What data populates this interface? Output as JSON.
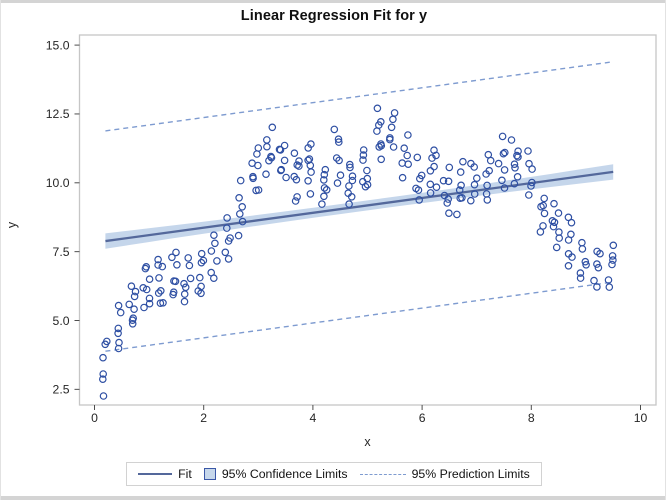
{
  "figure": {
    "title": "Linear Regression Fit for y"
  },
  "axes": {
    "x_label": "x",
    "y_label": "y",
    "x_tick_labels": [
      "0",
      "2",
      "4",
      "6",
      "8",
      "10"
    ],
    "y_tick_labels": [
      "2.5",
      "5.0",
      "7.5",
      "10.0",
      "12.5",
      "15.0"
    ]
  },
  "legend": {
    "fit_label": "Fit",
    "ci_label": "95% Confidence Limits",
    "pl_label": "95% Prediction Limits"
  },
  "colors": {
    "marker_stroke": "#2e4fa3",
    "fit_line": "#54689b",
    "confidence_band_fill": "#bfd2e9",
    "prediction_line": "#7e9bd0",
    "plot_border": "#c6c6c6",
    "tick": "#4d4d4d",
    "tick_label": "#262626"
  },
  "chart_data": {
    "type": "scatter",
    "title": "Linear Regression Fit for y",
    "xlabel": "x",
    "ylabel": "y",
    "xlim": [
      -0.28,
      10.28
    ],
    "ylim": [
      1.93,
      15.36
    ],
    "x_tick_values": [
      0,
      2,
      4,
      6,
      8,
      10
    ],
    "y_tick_values": [
      2.5,
      5.0,
      7.5,
      10.0,
      12.5,
      15.0
    ],
    "grid": "off",
    "legend_position": "bottom-outside",
    "fit_line": {
      "name": "Fit",
      "intercept": 7.83,
      "slope": 0.27,
      "x_start": 0.2,
      "x_end": 9.5
    },
    "confidence_band": {
      "name": "95% Confidence Limits",
      "center_mid_x": 4.85,
      "half_width_mid": 0.18,
      "half_width_end": 0.28
    },
    "prediction_limits": {
      "name": "95% Prediction Limits",
      "offset": 4.0,
      "x_start": 0.2,
      "x_end": 9.5,
      "upper_endpoints_y": [
        11.91,
        14.4
      ],
      "lower_endpoints_y": [
        3.91,
        6.4
      ]
    },
    "scatter": {
      "marker": "open-circle",
      "column_x": [
        0.2,
        0.45,
        0.7,
        0.95,
        1.2,
        1.45,
        1.7,
        1.95,
        2.2,
        2.45,
        2.7,
        2.95,
        3.2,
        3.45,
        3.7,
        3.95,
        4.2,
        4.45,
        4.7,
        4.95,
        5.2,
        5.45,
        5.7,
        5.95,
        6.2,
        6.45,
        6.7,
        6.95,
        7.2,
        7.45,
        7.7,
        7.95,
        8.2,
        8.45,
        8.7,
        8.95,
        9.2,
        9.45
      ],
      "column_y_mid": [
        3.4,
        4.7,
        5.5,
        6.2,
        6.4,
        6.6,
        6.4,
        6.7,
        7.2,
        7.9,
        9.1,
        10.4,
        11.1,
        10.8,
        10.3,
        10.6,
        9.9,
        11.0,
        10.0,
        10.4,
        11.7,
        11.9,
        11.0,
        10.0,
        10.5,
        9.7,
        9.8,
        10.0,
        10.2,
        10.7,
        10.8,
        10.2,
        8.9,
        8.4,
        7.8,
        7.2,
        7.0,
        7.1
      ],
      "column_y_half": [
        1.15,
        0.85,
        0.85,
        0.95,
        0.9,
        0.85,
        0.9,
        0.95,
        0.85,
        0.95,
        1.0,
        0.95,
        0.9,
        0.85,
        0.95,
        0.9,
        0.85,
        0.95,
        0.9,
        0.85,
        0.95,
        0.9,
        0.9,
        0.85,
        0.95,
        0.85,
        0.9,
        0.95,
        0.9,
        0.95,
        0.9,
        1.0,
        0.85,
        0.9,
        0.95,
        0.85,
        0.8,
        0.85
      ],
      "points_per_column_min": 6,
      "points_per_column_max": 8
    }
  }
}
